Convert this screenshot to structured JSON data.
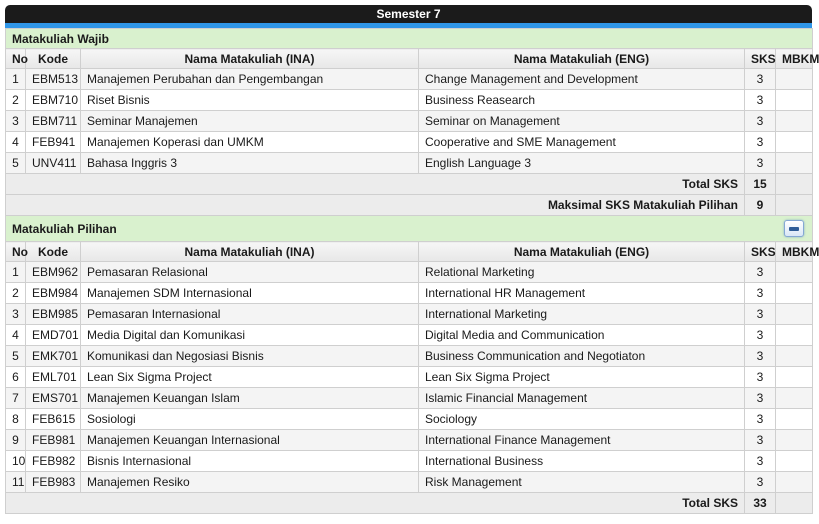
{
  "header": {
    "title": "Semester 7"
  },
  "colors": {
    "accent_stripe": "#2f96e8",
    "section_green": "#d9f1ce",
    "title_bar": "#1b1b1b"
  },
  "columns": [
    {
      "key": "no",
      "label": "No"
    },
    {
      "key": "kode",
      "label": "Kode"
    },
    {
      "key": "ina",
      "label": "Nama Matakuliah (INA)"
    },
    {
      "key": "eng",
      "label": "Nama Matakuliah (ENG)"
    },
    {
      "key": "sks",
      "label": "SKS"
    },
    {
      "key": "mbkm",
      "label": "MBKM"
    }
  ],
  "sections": [
    {
      "title": "Matakuliah Wajib",
      "has_collapse_button": false,
      "rows": [
        {
          "no": "1",
          "kode": "EBM513",
          "ina": "Manajemen Perubahan dan Pengembangan",
          "eng": "Change Management and Development",
          "sks": "3",
          "mbkm": ""
        },
        {
          "no": "2",
          "kode": "EBM710",
          "ina": "Riset Bisnis",
          "eng": "Business Reasearch",
          "sks": "3",
          "mbkm": ""
        },
        {
          "no": "3",
          "kode": "EBM711",
          "ina": "Seminar Manajemen",
          "eng": "Seminar on Management",
          "sks": "3",
          "mbkm": ""
        },
        {
          "no": "4",
          "kode": "FEB941",
          "ina": "Manajemen Koperasi dan UMKM",
          "eng": "Cooperative and SME Management",
          "sks": "3",
          "mbkm": ""
        },
        {
          "no": "5",
          "kode": "UNV411",
          "ina": "Bahasa Inggris 3",
          "eng": "English Language 3",
          "sks": "3",
          "mbkm": ""
        }
      ],
      "footers": [
        {
          "label": "Total SKS",
          "value": "15"
        },
        {
          "label": "Maksimal SKS Matakuliah Pilihan",
          "value": "9"
        }
      ]
    },
    {
      "title": "Matakuliah Pilihan",
      "has_collapse_button": true,
      "collapse_icon": "minus-icon",
      "rows": [
        {
          "no": "1",
          "kode": "EBM962",
          "ina": "Pemasaran Relasional",
          "eng": "Relational Marketing",
          "sks": "3",
          "mbkm": ""
        },
        {
          "no": "2",
          "kode": "EBM984",
          "ina": "Manajemen SDM Internasional",
          "eng": "International HR Management",
          "sks": "3",
          "mbkm": ""
        },
        {
          "no": "3",
          "kode": "EBM985",
          "ina": "Pemasaran Internasional",
          "eng": "International Marketing",
          "sks": "3",
          "mbkm": ""
        },
        {
          "no": "4",
          "kode": "EMD701",
          "ina": "Media Digital dan Komunikasi",
          "eng": "Digital Media and Communication",
          "sks": "3",
          "mbkm": ""
        },
        {
          "no": "5",
          "kode": "EMK701",
          "ina": "Komunikasi dan Negosiasi Bisnis",
          "eng": "Business Communication and Negotiaton",
          "sks": "3",
          "mbkm": ""
        },
        {
          "no": "6",
          "kode": "EML701",
          "ina": "Lean Six Sigma Project",
          "eng": "Lean Six Sigma Project",
          "sks": "3",
          "mbkm": ""
        },
        {
          "no": "7",
          "kode": "EMS701",
          "ina": "Manajemen Keuangan Islam",
          "eng": "Islamic Financial Management",
          "sks": "3",
          "mbkm": ""
        },
        {
          "no": "8",
          "kode": "FEB615",
          "ina": "Sosiologi",
          "eng": "Sociology",
          "sks": "3",
          "mbkm": ""
        },
        {
          "no": "9",
          "kode": "FEB981",
          "ina": "Manajemen Keuangan Internasional",
          "eng": "International Finance Management",
          "sks": "3",
          "mbkm": ""
        },
        {
          "no": "10",
          "kode": "FEB982",
          "ina": "Bisnis Internasional",
          "eng": "International Business",
          "sks": "3",
          "mbkm": ""
        },
        {
          "no": "11",
          "kode": "FEB983",
          "ina": "Manajemen Resiko",
          "eng": "Risk Management",
          "sks": "3",
          "mbkm": ""
        }
      ],
      "footers": [
        {
          "label": "Total SKS",
          "value": "33"
        }
      ]
    }
  ]
}
